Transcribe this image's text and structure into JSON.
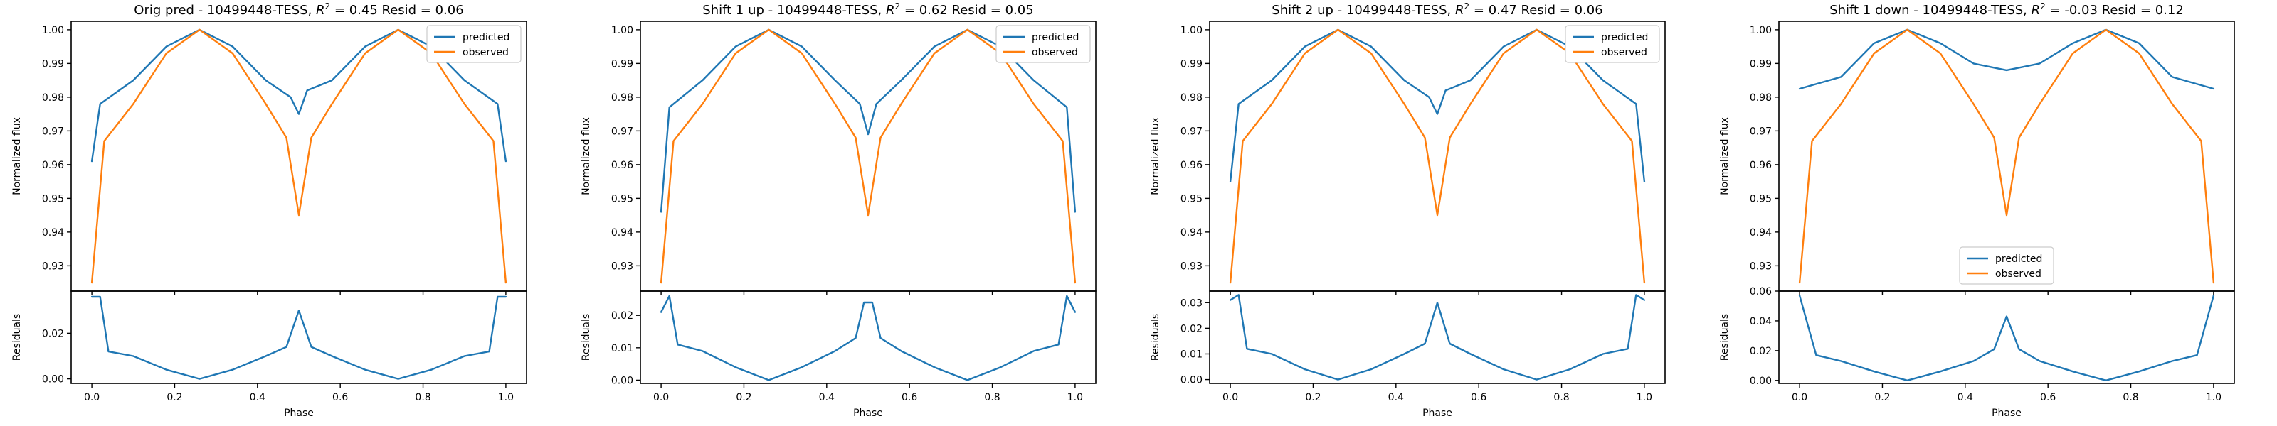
{
  "colors": {
    "predicted": "#1f77b4",
    "observed": "#ff7f0e",
    "residual": "#1f77b4"
  },
  "chart_data": [
    {
      "type": "line",
      "title": "Orig pred - 10499448-TESS, R² = 0.45 Resid = 0.06",
      "xlabel": "Phase",
      "ylabel": "Normalized flux",
      "xlim": [
        -0.05,
        1.05
      ],
      "ylim": [
        0.9225,
        1.0025
      ],
      "x_ticks": [
        0.0,
        0.2,
        0.4,
        0.6,
        0.8,
        1.0
      ],
      "x_tick_labels": [
        "0.0",
        "0.2",
        "0.4",
        "0.6",
        "0.8",
        "1.0"
      ],
      "y_ticks": [
        0.93,
        0.94,
        0.95,
        0.96,
        0.97,
        0.98,
        0.99,
        1.0
      ],
      "y_tick_labels": [
        "0.93",
        "0.94",
        "0.95",
        "0.96",
        "0.97",
        "0.98",
        "0.99",
        "1.00"
      ],
      "legend": {
        "location": "top-right",
        "entries": [
          "predicted",
          "observed"
        ]
      },
      "series": [
        {
          "name": "predicted",
          "x": [
            0.0,
            0.02,
            0.1,
            0.18,
            0.26,
            0.34,
            0.42,
            0.48,
            0.5,
            0.52,
            0.58,
            0.66,
            0.74,
            0.82,
            0.9,
            0.98,
            1.0
          ],
          "values": [
            0.961,
            0.978,
            0.985,
            0.995,
            1.0,
            0.995,
            0.985,
            0.98,
            0.975,
            0.982,
            0.985,
            0.995,
            1.0,
            0.995,
            0.985,
            0.978,
            0.961
          ]
        },
        {
          "name": "observed",
          "x": [
            0.0,
            0.03,
            0.1,
            0.18,
            0.26,
            0.34,
            0.42,
            0.47,
            0.5,
            0.53,
            0.58,
            0.66,
            0.74,
            0.82,
            0.9,
            0.97,
            1.0
          ],
          "values": [
            0.925,
            0.967,
            0.978,
            0.993,
            1.0,
            0.993,
            0.978,
            0.968,
            0.945,
            0.968,
            0.978,
            0.993,
            1.0,
            0.993,
            0.978,
            0.967,
            0.925
          ]
        }
      ],
      "residuals": {
        "ylabel": "Residuals",
        "ylim": [
          -0.002,
          0.0385
        ],
        "y_ticks": [
          0.0,
          0.02
        ],
        "y_tick_labels": [
          "0.00",
          "0.02"
        ],
        "x": [
          0.0,
          0.02,
          0.04,
          0.1,
          0.18,
          0.26,
          0.34,
          0.42,
          0.47,
          0.5,
          0.53,
          0.58,
          0.66,
          0.74,
          0.82,
          0.9,
          0.96,
          0.98,
          1.0
        ],
        "values": [
          0.036,
          0.036,
          0.012,
          0.01,
          0.004,
          0.0,
          0.004,
          0.01,
          0.014,
          0.03,
          0.014,
          0.01,
          0.004,
          0.0,
          0.004,
          0.01,
          0.012,
          0.036,
          0.036
        ]
      }
    },
    {
      "type": "line",
      "title": "Shift 1 up - 10499448-TESS, R² = 0.62 Resid = 0.05",
      "xlabel": "Phase",
      "ylabel": "Normalized flux",
      "xlim": [
        -0.05,
        1.05
      ],
      "ylim": [
        0.9225,
        1.0025
      ],
      "x_ticks": [
        0.0,
        0.2,
        0.4,
        0.6,
        0.8,
        1.0
      ],
      "x_tick_labels": [
        "0.0",
        "0.2",
        "0.4",
        "0.6",
        "0.8",
        "1.0"
      ],
      "y_ticks": [
        0.93,
        0.94,
        0.95,
        0.96,
        0.97,
        0.98,
        0.99,
        1.0
      ],
      "y_tick_labels": [
        "0.93",
        "0.94",
        "0.95",
        "0.96",
        "0.97",
        "0.98",
        "0.99",
        "1.00"
      ],
      "legend": {
        "location": "top-right",
        "entries": [
          "predicted",
          "observed"
        ]
      },
      "series": [
        {
          "name": "predicted",
          "x": [
            0.0,
            0.02,
            0.1,
            0.18,
            0.26,
            0.34,
            0.42,
            0.48,
            0.5,
            0.52,
            0.58,
            0.66,
            0.74,
            0.82,
            0.9,
            0.98,
            1.0
          ],
          "values": [
            0.946,
            0.977,
            0.985,
            0.995,
            1.0,
            0.995,
            0.985,
            0.978,
            0.969,
            0.978,
            0.985,
            0.995,
            1.0,
            0.995,
            0.985,
            0.977,
            0.946
          ]
        },
        {
          "name": "observed",
          "x": [
            0.0,
            0.03,
            0.1,
            0.18,
            0.26,
            0.34,
            0.42,
            0.47,
            0.5,
            0.53,
            0.58,
            0.66,
            0.74,
            0.82,
            0.9,
            0.97,
            1.0
          ],
          "values": [
            0.925,
            0.967,
            0.978,
            0.993,
            1.0,
            0.993,
            0.978,
            0.968,
            0.945,
            0.968,
            0.978,
            0.993,
            1.0,
            0.993,
            0.978,
            0.967,
            0.925
          ]
        }
      ],
      "residuals": {
        "ylabel": "Residuals",
        "ylim": [
          -0.001,
          0.0275
        ],
        "y_ticks": [
          0.0,
          0.01,
          0.02
        ],
        "y_tick_labels": [
          "0.00",
          "0.01",
          "0.02"
        ],
        "x": [
          0.0,
          0.02,
          0.04,
          0.1,
          0.18,
          0.26,
          0.34,
          0.42,
          0.47,
          0.49,
          0.51,
          0.53,
          0.58,
          0.66,
          0.74,
          0.82,
          0.9,
          0.96,
          0.98,
          1.0
        ],
        "values": [
          0.021,
          0.026,
          0.011,
          0.009,
          0.004,
          0.0,
          0.004,
          0.009,
          0.013,
          0.024,
          0.024,
          0.013,
          0.009,
          0.004,
          0.0,
          0.004,
          0.009,
          0.011,
          0.026,
          0.021
        ]
      }
    },
    {
      "type": "line",
      "title": "Shift 2 up - 10499448-TESS, R² = 0.47 Resid = 0.06",
      "xlabel": "Phase",
      "ylabel": "Normalized flux",
      "xlim": [
        -0.05,
        1.05
      ],
      "ylim": [
        0.9225,
        1.0025
      ],
      "x_ticks": [
        0.0,
        0.2,
        0.4,
        0.6,
        0.8,
        1.0
      ],
      "x_tick_labels": [
        "0.0",
        "0.2",
        "0.4",
        "0.6",
        "0.8",
        "1.0"
      ],
      "y_ticks": [
        0.93,
        0.94,
        0.95,
        0.96,
        0.97,
        0.98,
        0.99,
        1.0
      ],
      "y_tick_labels": [
        "0.93",
        "0.94",
        "0.95",
        "0.96",
        "0.97",
        "0.98",
        "0.99",
        "1.00"
      ],
      "legend": {
        "location": "top-right",
        "entries": [
          "predicted",
          "observed"
        ]
      },
      "series": [
        {
          "name": "predicted",
          "x": [
            0.0,
            0.02,
            0.1,
            0.18,
            0.26,
            0.34,
            0.42,
            0.48,
            0.5,
            0.52,
            0.58,
            0.66,
            0.74,
            0.82,
            0.9,
            0.98,
            1.0
          ],
          "values": [
            0.955,
            0.978,
            0.985,
            0.995,
            1.0,
            0.995,
            0.985,
            0.98,
            0.975,
            0.982,
            0.985,
            0.995,
            1.0,
            0.995,
            0.985,
            0.978,
            0.955
          ]
        },
        {
          "name": "observed",
          "x": [
            0.0,
            0.03,
            0.1,
            0.18,
            0.26,
            0.34,
            0.42,
            0.47,
            0.5,
            0.53,
            0.58,
            0.66,
            0.74,
            0.82,
            0.9,
            0.97,
            1.0
          ],
          "values": [
            0.925,
            0.967,
            0.978,
            0.993,
            1.0,
            0.993,
            0.978,
            0.968,
            0.945,
            0.968,
            0.978,
            0.993,
            1.0,
            0.993,
            0.978,
            0.967,
            0.925
          ]
        }
      ],
      "residuals": {
        "ylabel": "Residuals",
        "ylim": [
          -0.0015,
          0.0345
        ],
        "y_ticks": [
          0.0,
          0.01,
          0.02,
          0.03
        ],
        "y_tick_labels": [
          "0.00",
          "0.01",
          "0.02",
          "0.03"
        ],
        "x": [
          0.0,
          0.02,
          0.04,
          0.1,
          0.18,
          0.26,
          0.34,
          0.42,
          0.47,
          0.5,
          0.53,
          0.58,
          0.66,
          0.74,
          0.82,
          0.9,
          0.96,
          0.98,
          1.0
        ],
        "values": [
          0.031,
          0.033,
          0.012,
          0.01,
          0.004,
          0.0,
          0.004,
          0.01,
          0.014,
          0.03,
          0.014,
          0.01,
          0.004,
          0.0,
          0.004,
          0.01,
          0.012,
          0.033,
          0.031
        ]
      }
    },
    {
      "type": "line",
      "title": "Shift 1 down - 10499448-TESS, R² = -0.03 Resid = 0.12",
      "xlabel": "Phase",
      "ylabel": "Normalized flux",
      "xlim": [
        -0.05,
        1.05
      ],
      "ylim": [
        0.9225,
        1.0025
      ],
      "x_ticks": [
        0.0,
        0.2,
        0.4,
        0.6,
        0.8,
        1.0
      ],
      "x_tick_labels": [
        "0.0",
        "0.2",
        "0.4",
        "0.6",
        "0.8",
        "1.0"
      ],
      "y_ticks": [
        0.93,
        0.94,
        0.95,
        0.96,
        0.97,
        0.98,
        0.99,
        1.0
      ],
      "y_tick_labels": [
        "0.93",
        "0.94",
        "0.95",
        "0.96",
        "0.97",
        "0.98",
        "0.99",
        "1.00"
      ],
      "legend": {
        "location": "bottom-center",
        "entries": [
          "predicted",
          "observed"
        ]
      },
      "series": [
        {
          "name": "predicted",
          "x": [
            0.0,
            0.1,
            0.18,
            0.26,
            0.34,
            0.42,
            0.5,
            0.58,
            0.66,
            0.74,
            0.82,
            0.9,
            1.0
          ],
          "values": [
            0.9825,
            0.986,
            0.996,
            1.0,
            0.996,
            0.99,
            0.988,
            0.99,
            0.996,
            1.0,
            0.996,
            0.986,
            0.9825
          ]
        },
        {
          "name": "observed",
          "x": [
            0.0,
            0.03,
            0.1,
            0.18,
            0.26,
            0.34,
            0.42,
            0.47,
            0.5,
            0.53,
            0.58,
            0.66,
            0.74,
            0.82,
            0.9,
            0.97,
            1.0
          ],
          "values": [
            0.925,
            0.967,
            0.978,
            0.993,
            1.0,
            0.993,
            0.978,
            0.968,
            0.945,
            0.968,
            0.978,
            0.993,
            1.0,
            0.993,
            0.978,
            0.967,
            0.925
          ]
        }
      ],
      "residuals": {
        "ylabel": "Residuals",
        "ylim": [
          -0.002,
          0.06
        ],
        "y_ticks": [
          0.0,
          0.02,
          0.04,
          0.06
        ],
        "y_tick_labels": [
          "0.00",
          "0.02",
          "0.04",
          "0.06"
        ],
        "x": [
          0.0,
          0.04,
          0.1,
          0.18,
          0.26,
          0.34,
          0.42,
          0.47,
          0.5,
          0.53,
          0.58,
          0.66,
          0.74,
          0.82,
          0.9,
          0.96,
          1.0
        ],
        "values": [
          0.057,
          0.017,
          0.013,
          0.006,
          0.0,
          0.006,
          0.013,
          0.021,
          0.043,
          0.021,
          0.013,
          0.006,
          0.0,
          0.006,
          0.013,
          0.017,
          0.057
        ]
      }
    }
  ]
}
